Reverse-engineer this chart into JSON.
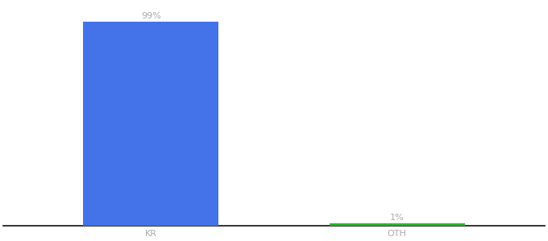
{
  "categories": [
    "KR",
    "OTH"
  ],
  "values": [
    99,
    1
  ],
  "bar_colors": [
    "#4472e8",
    "#2db52d"
  ],
  "label_texts": [
    "99%",
    "1%"
  ],
  "background_color": "#ffffff",
  "text_color": "#aaaaaa",
  "label_fontsize": 8,
  "tick_fontsize": 8,
  "ylim": [
    0,
    108
  ],
  "xlim": [
    -0.6,
    1.6
  ],
  "bar_width": 0.55
}
